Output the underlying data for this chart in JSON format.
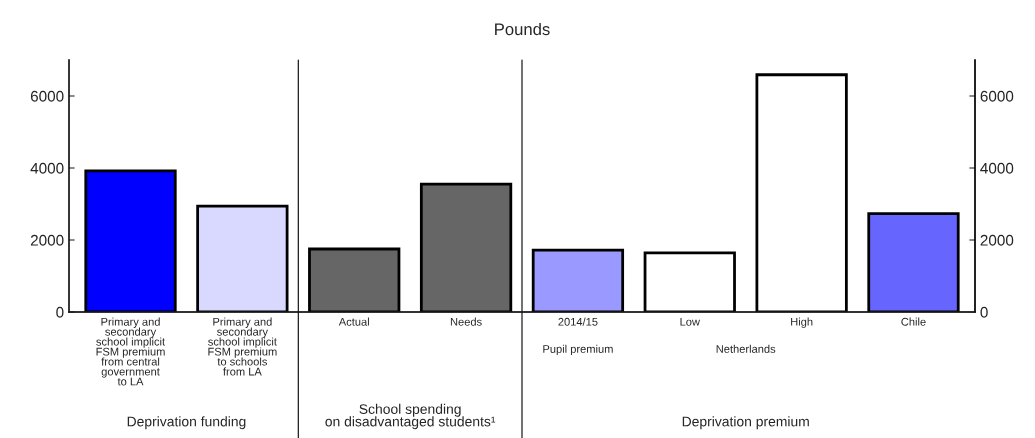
{
  "chart_data": {
    "type": "bar",
    "title": "Pounds",
    "categories": [
      "Primary and\nsecondary\nschool implicit\nFSM premium\nfrom central\ngovernment\nto LA",
      "Primary and\nsecondary\nschool implicit\nFSM premium\nto schools\nfrom LA",
      "Actual",
      "Needs",
      "2014/15",
      "Low",
      "High",
      "Chile"
    ],
    "values": [
      3920,
      2940,
      1750,
      3550,
      1720,
      1640,
      6590,
      2730
    ],
    "colors": [
      "#0000ff",
      "#d9d9ff",
      "#666666",
      "#666666",
      "#9999ff",
      "#ffffff",
      "#ffffff",
      "#6666ff"
    ],
    "ylim": [
      0,
      7000
    ],
    "yticks": [
      0,
      2000,
      4000,
      6000
    ],
    "y2lim": [
      0,
      7000
    ],
    "y2ticks": [
      0,
      2000,
      4000,
      6000
    ],
    "grid": false,
    "annotations": [
      "Pupil premium",
      "Netherlands",
      "Deprivation funding",
      "School spending\non disadvantaged students¹",
      "Deprivation premium"
    ]
  }
}
